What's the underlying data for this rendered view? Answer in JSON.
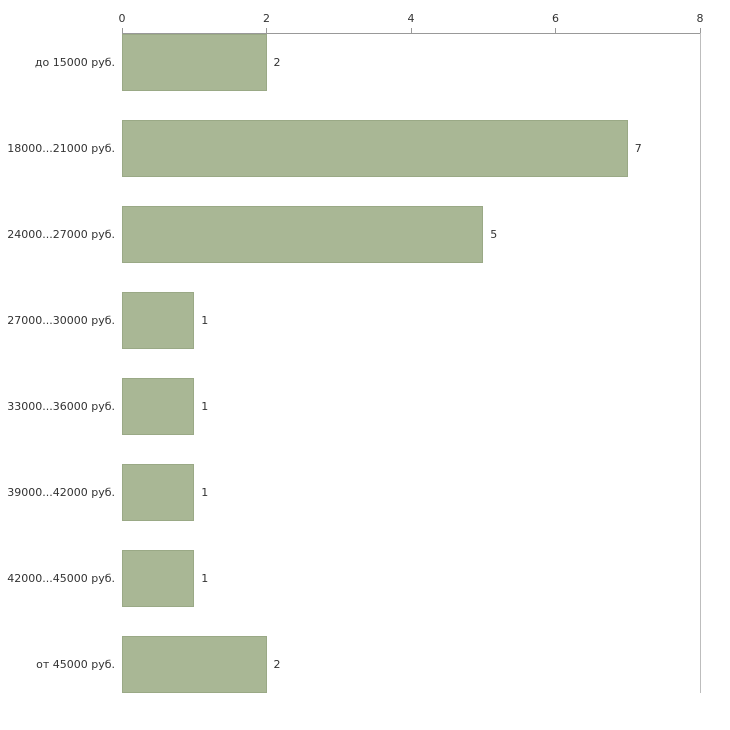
{
  "chart_data": {
    "type": "bar",
    "orientation": "horizontal",
    "title": "",
    "xlabel": "",
    "ylabel": "",
    "categories": [
      "до 15000 руб.",
      "18000...21000 руб.",
      "24000...27000 руб.",
      "27000...30000 руб.",
      "33000...36000 руб.",
      "39000...42000 руб.",
      "42000...45000 руб.",
      "от 45000 руб."
    ],
    "values": [
      2,
      7,
      5,
      1,
      1,
      1,
      1,
      2
    ],
    "value_labels": [
      "2",
      "7",
      "5",
      "1",
      "1",
      "1",
      "1",
      "2"
    ],
    "xlim": [
      0,
      8
    ],
    "x_ticks": [
      "0",
      "2",
      "4",
      "6",
      "8"
    ],
    "grid": false,
    "legend": false,
    "axis_position": "top",
    "colors": {
      "bar_fill": "#a9b795",
      "bar_border": "#9aa986",
      "axis_line": "#999999",
      "text": "#333333",
      "background": "#ffffff"
    }
  }
}
